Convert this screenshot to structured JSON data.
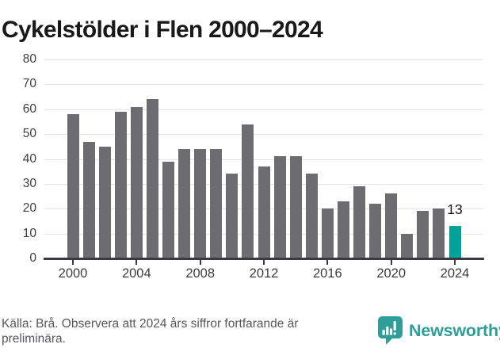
{
  "title": "Cykelstölder i Flen 2000–2024",
  "chart_data": {
    "type": "bar",
    "title": "Cykelstölder i Flen 2000–2024",
    "categories": [
      2000,
      2001,
      2002,
      2003,
      2004,
      2005,
      2006,
      2007,
      2008,
      2009,
      2010,
      2011,
      2012,
      2013,
      2014,
      2015,
      2016,
      2017,
      2018,
      2019,
      2020,
      2021,
      2022,
      2023,
      2024
    ],
    "values": [
      58,
      47,
      45,
      59,
      61,
      64,
      39,
      44,
      44,
      44,
      34,
      54,
      37,
      41,
      41,
      34,
      20,
      23,
      29,
      22,
      26,
      10,
      19,
      20,
      13
    ],
    "highlight_category": 2024,
    "highlight_value_label": "13",
    "xlabel": "",
    "ylabel": "",
    "ylim": [
      0,
      80
    ],
    "yticks": [
      0,
      10,
      20,
      30,
      40,
      50,
      60,
      70,
      80
    ],
    "xticks": [
      2000,
      2004,
      2008,
      2012,
      2016,
      2020,
      2024
    ],
    "grid": true,
    "legend": false,
    "bar_color": "#6c6c71",
    "highlight_color": "#00a29a"
  },
  "colors": {
    "title": "#191919",
    "axis": "#3a3a3f",
    "gridline": "#e4e4e4",
    "tick_label": "#3d3d42",
    "footer_text": "#55575c",
    "brand": "#2f9e99"
  },
  "footer": {
    "source_text": "Källa: Brå. Observera att 2024 års siffror fortfarande är preliminära.",
    "brand": "Newsworthy",
    "logo_icon": "bar-chart-speech-bubble-icon"
  }
}
